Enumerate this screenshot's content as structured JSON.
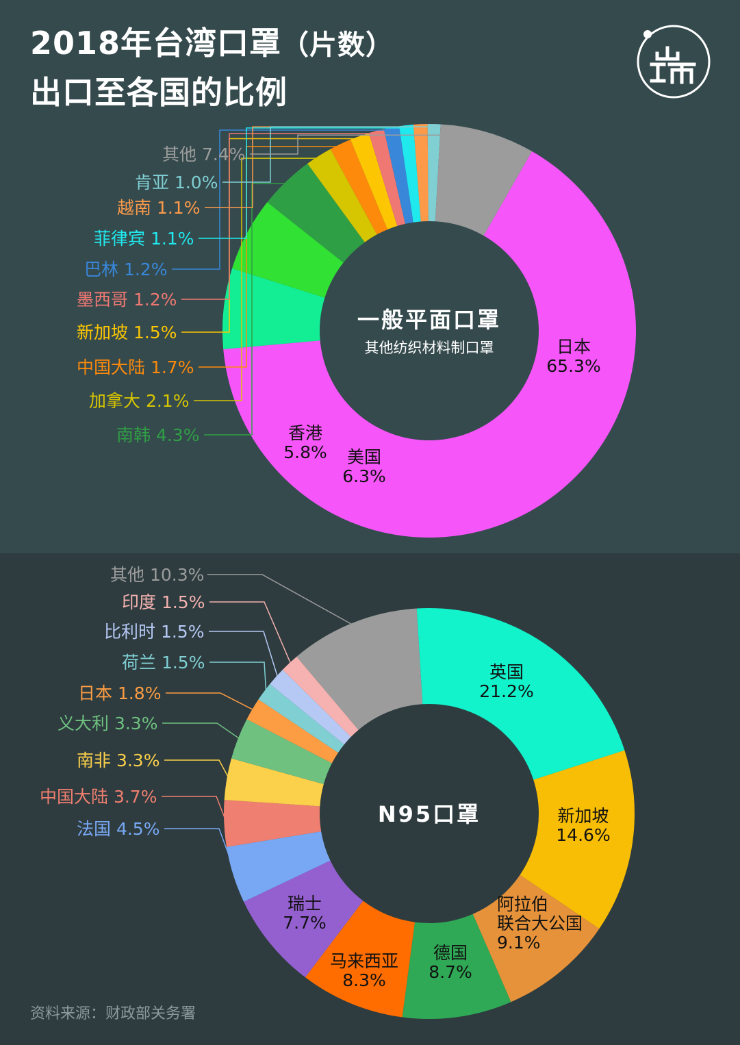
{
  "header": {
    "title_line1": "2018年台湾口罩",
    "title_paren": "（片数）",
    "title_line2": "出口至各国的比例",
    "logo_text": "端"
  },
  "source": "资料来源：财政部关务署",
  "chart_data": [
    {
      "type": "pie",
      "donut": true,
      "center_title": "一般平面口罩",
      "center_subtitle": "其他纺织材料制口罩",
      "unit": "%",
      "slices": [
        {
          "label": "日本",
          "value": 65.3,
          "color": "#f655f9"
        },
        {
          "label": "美国",
          "value": 6.3,
          "color": "#13ee94"
        },
        {
          "label": "香港",
          "value": 5.8,
          "color": "#31e134"
        },
        {
          "label": "南韩",
          "value": 4.3,
          "color": "#2f9f45"
        },
        {
          "label": "加拿大",
          "value": 2.1,
          "color": "#d6c501"
        },
        {
          "label": "中国大陆",
          "value": 1.7,
          "color": "#fd8a0b"
        },
        {
          "label": "新加坡",
          "value": 1.5,
          "color": "#fcc603"
        },
        {
          "label": "墨西哥",
          "value": 1.2,
          "color": "#f07873"
        },
        {
          "label": "巴林",
          "value": 1.2,
          "color": "#3887d9"
        },
        {
          "label": "菲律宾",
          "value": 1.1,
          "color": "#20e9ee"
        },
        {
          "label": "越南",
          "value": 1.1,
          "color": "#fd9a4a"
        },
        {
          "label": "肯亚",
          "value": 1.0,
          "color": "#7fcfd3"
        },
        {
          "label": "其他",
          "value": 7.4,
          "color": "#9c9c9c"
        }
      ]
    },
    {
      "type": "pie",
      "donut": true,
      "center_title": "N95口罩",
      "unit": "%",
      "slices": [
        {
          "label": "英国",
          "value": 21.2,
          "color": "#12f2cb"
        },
        {
          "label": "新加坡",
          "value": 14.6,
          "color": "#f8bd05"
        },
        {
          "label": "阿拉伯联合大公国",
          "value": 9.1,
          "color": "#e5923a"
        },
        {
          "label": "德国",
          "value": 8.7,
          "color": "#2fa955"
        },
        {
          "label": "马来西亚",
          "value": 8.3,
          "color": "#ff6d00"
        },
        {
          "label": "瑞士",
          "value": 7.7,
          "color": "#9460d0"
        },
        {
          "label": "法国",
          "value": 4.5,
          "color": "#78a8f4"
        },
        {
          "label": "中国大陆",
          "value": 3.7,
          "color": "#ef7f70"
        },
        {
          "label": "南非",
          "value": 3.3,
          "color": "#fbd04b"
        },
        {
          "label": "义大利",
          "value": 3.3,
          "color": "#6fc180"
        },
        {
          "label": "日本",
          "value": 1.8,
          "color": "#fd9d43"
        },
        {
          "label": "荷兰",
          "value": 1.5,
          "color": "#7fcfd3"
        },
        {
          "label": "比利时",
          "value": 1.5,
          "color": "#b6c9f5"
        },
        {
          "label": "印度",
          "value": 1.5,
          "color": "#f5b2b0"
        },
        {
          "label": "其他",
          "value": 10.3,
          "color": "#9c9c9c"
        }
      ]
    }
  ]
}
